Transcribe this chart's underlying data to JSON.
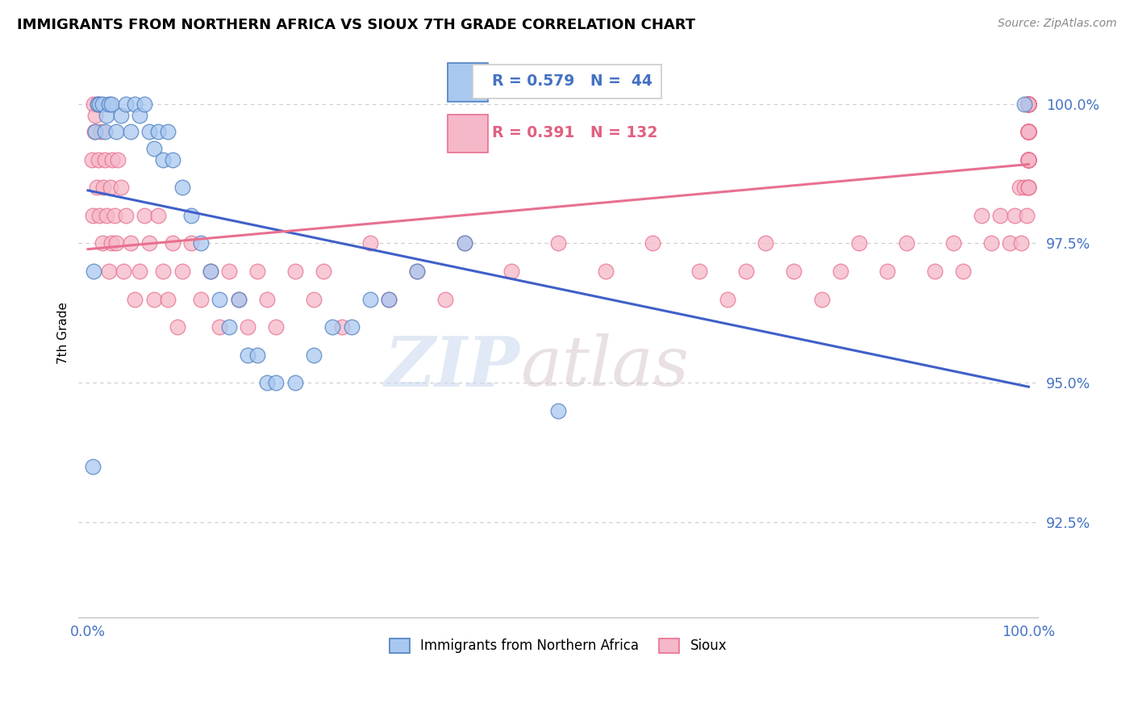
{
  "title": "IMMIGRANTS FROM NORTHERN AFRICA VS SIOUX 7TH GRADE CORRELATION CHART",
  "source": "Source: ZipAtlas.com",
  "ylabel": "7th Grade",
  "legend_blue_R": "R = 0.579",
  "legend_blue_N": "N =  44",
  "legend_pink_R": "R = 0.391",
  "legend_pink_N": "N = 132",
  "legend_label_blue": "Immigrants from Northern Africa",
  "legend_label_pink": "Sioux",
  "blue_fill": "#A8C8F0",
  "pink_fill": "#F5B8C8",
  "blue_edge": "#5080C0",
  "pink_edge": "#E87090",
  "blue_line": "#4060C8",
  "pink_line": "#E87090",
  "yticks": [
    92.5,
    95.0,
    97.5,
    100.0
  ],
  "ytick_labels": [
    "92.5%",
    "95.0%",
    "97.5%",
    "100.0%"
  ],
  "ylim_min": 90.8,
  "ylim_max": 101.0,
  "xlim_min": -1.0,
  "xlim_max": 101.0,
  "blue_x": [
    0.5,
    0.6,
    0.8,
    1.0,
    1.2,
    1.5,
    1.8,
    2.0,
    2.2,
    2.5,
    3.0,
    3.5,
    4.0,
    4.5,
    5.0,
    5.5,
    6.0,
    6.5,
    7.0,
    7.5,
    8.0,
    8.5,
    9.0,
    10.0,
    11.0,
    12.0,
    13.0,
    14.0,
    15.0,
    16.0,
    17.0,
    18.0,
    19.0,
    20.0,
    22.0,
    24.0,
    26.0,
    28.0,
    30.0,
    32.0,
    35.0,
    40.0,
    50.0,
    99.5
  ],
  "blue_y": [
    93.5,
    97.0,
    99.5,
    100.0,
    100.0,
    100.0,
    99.5,
    99.8,
    100.0,
    100.0,
    99.5,
    99.8,
    100.0,
    99.5,
    100.0,
    99.8,
    100.0,
    99.5,
    99.2,
    99.5,
    99.0,
    99.5,
    99.0,
    98.5,
    98.0,
    97.5,
    97.0,
    96.5,
    96.0,
    96.5,
    95.5,
    95.5,
    95.0,
    95.0,
    95.0,
    95.5,
    96.0,
    96.0,
    96.5,
    96.5,
    97.0,
    97.5,
    94.5,
    100.0
  ],
  "pink_x": [
    0.4,
    0.5,
    0.6,
    0.7,
    0.8,
    0.9,
    1.0,
    1.1,
    1.2,
    1.4,
    1.5,
    1.6,
    1.8,
    2.0,
    2.2,
    2.4,
    2.5,
    2.6,
    2.8,
    3.0,
    3.2,
    3.5,
    3.8,
    4.0,
    4.5,
    5.0,
    5.5,
    6.0,
    6.5,
    7.0,
    7.5,
    8.0,
    8.5,
    9.0,
    9.5,
    10.0,
    11.0,
    12.0,
    13.0,
    14.0,
    15.0,
    16.0,
    17.0,
    18.0,
    19.0,
    20.0,
    22.0,
    24.0,
    25.0,
    27.0,
    30.0,
    32.0,
    35.0,
    38.0,
    40.0,
    45.0,
    50.0,
    55.0,
    60.0,
    65.0,
    68.0,
    70.0,
    72.0,
    75.0,
    78.0,
    80.0,
    82.0,
    85.0,
    87.0,
    90.0,
    92.0,
    93.0,
    95.0,
    96.0,
    97.0,
    98.0,
    98.5,
    99.0,
    99.2,
    99.5,
    99.8,
    100.0,
    100.0,
    100.0,
    100.0,
    100.0,
    100.0,
    100.0,
    100.0,
    100.0,
    100.0,
    100.0,
    100.0,
    100.0,
    100.0,
    100.0,
    100.0,
    100.0,
    100.0,
    100.0,
    100.0,
    100.0,
    100.0,
    100.0,
    100.0,
    100.0,
    100.0,
    100.0,
    100.0,
    100.0,
    100.0,
    100.0,
    100.0,
    100.0,
    100.0,
    100.0,
    100.0,
    100.0,
    100.0,
    100.0,
    100.0,
    100.0,
    100.0,
    100.0,
    100.0,
    100.0,
    100.0,
    100.0,
    100.0,
    100.0,
    100.0,
    100.0
  ],
  "pink_y": [
    99.0,
    98.0,
    100.0,
    99.5,
    99.8,
    98.5,
    100.0,
    99.0,
    98.0,
    99.5,
    97.5,
    98.5,
    99.0,
    98.0,
    97.0,
    98.5,
    97.5,
    99.0,
    98.0,
    97.5,
    99.0,
    98.5,
    97.0,
    98.0,
    97.5,
    96.5,
    97.0,
    98.0,
    97.5,
    96.5,
    98.0,
    97.0,
    96.5,
    97.5,
    96.0,
    97.0,
    97.5,
    96.5,
    97.0,
    96.0,
    97.0,
    96.5,
    96.0,
    97.0,
    96.5,
    96.0,
    97.0,
    96.5,
    97.0,
    96.0,
    97.5,
    96.5,
    97.0,
    96.5,
    97.5,
    97.0,
    97.5,
    97.0,
    97.5,
    97.0,
    96.5,
    97.0,
    97.5,
    97.0,
    96.5,
    97.0,
    97.5,
    97.0,
    97.5,
    97.0,
    97.5,
    97.0,
    98.0,
    97.5,
    98.0,
    97.5,
    98.0,
    98.5,
    97.5,
    98.5,
    98.0,
    99.0,
    98.5,
    99.0,
    98.5,
    99.0,
    98.5,
    99.0,
    99.5,
    99.0,
    99.5,
    99.0,
    99.5,
    100.0,
    99.5,
    100.0,
    99.5,
    100.0,
    99.5,
    100.0,
    99.5,
    100.0,
    99.5,
    100.0,
    99.5,
    100.0,
    99.0,
    100.0,
    99.5,
    100.0,
    99.0,
    100.0,
    99.5,
    100.0,
    99.0,
    100.0,
    99.5,
    100.0,
    99.0,
    100.0,
    99.5,
    100.0,
    99.0,
    100.0,
    99.5,
    100.0,
    99.0,
    100.0,
    99.5,
    100.0,
    99.5,
    100.0
  ]
}
